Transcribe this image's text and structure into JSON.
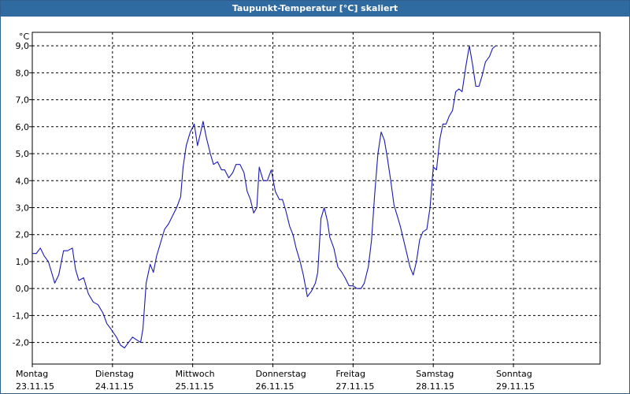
{
  "window": {
    "title": "Taupunkt-Temperatur [°C] skaliert"
  },
  "colors": {
    "line": "#1a1ab0",
    "titlebar": "#2f6aa0",
    "grid": "#000000"
  },
  "chart_data": {
    "type": "line",
    "title": "Taupunkt-Temperatur [°C] skaliert",
    "ylabel": "°C",
    "xlabel": "",
    "ylim": [
      -2.8,
      9.5
    ],
    "xlim": [
      0,
      7.08
    ],
    "grid": true,
    "yticks": [
      {
        "value": 9,
        "label": "9,0"
      },
      {
        "value": 8,
        "label": "8,0"
      },
      {
        "value": 7,
        "label": "7,0"
      },
      {
        "value": 6,
        "label": "6,0"
      },
      {
        "value": 5,
        "label": "5,0"
      },
      {
        "value": 4,
        "label": "4,0"
      },
      {
        "value": 3,
        "label": "3,0"
      },
      {
        "value": 2,
        "label": "2,0"
      },
      {
        "value": 1,
        "label": "1,0"
      },
      {
        "value": 0,
        "label": "0,0"
      },
      {
        "value": -1,
        "label": "-1,0"
      },
      {
        "value": -2,
        "label": "-2,0"
      }
    ],
    "xticks": [
      {
        "value": 0,
        "day": "Montag",
        "date": "23.11.15"
      },
      {
        "value": 1,
        "day": "Dienstag",
        "date": "24.11.15"
      },
      {
        "value": 2,
        "day": "Mittwoch",
        "date": "25.11.15"
      },
      {
        "value": 3,
        "day": "Donnerstag",
        "date": "26.11.15"
      },
      {
        "value": 4,
        "day": "Freitag",
        "date": "27.11.15"
      },
      {
        "value": 5,
        "day": "Samstag",
        "date": "28.11.15"
      },
      {
        "value": 6,
        "day": "Sonntag",
        "date": "29.11.15"
      }
    ],
    "series": [
      {
        "values": [
          [
            0.0,
            1.3
          ],
          [
            0.05,
            1.3
          ],
          [
            0.1,
            1.5
          ],
          [
            0.15,
            1.2
          ],
          [
            0.2,
            1.0
          ],
          [
            0.25,
            0.5
          ],
          [
            0.28,
            0.2
          ],
          [
            0.33,
            0.5
          ],
          [
            0.39,
            1.4
          ],
          [
            0.44,
            1.4
          ],
          [
            0.5,
            1.5
          ],
          [
            0.54,
            0.7
          ],
          [
            0.58,
            0.3
          ],
          [
            0.64,
            0.4
          ],
          [
            0.7,
            -0.2
          ],
          [
            0.76,
            -0.5
          ],
          [
            0.82,
            -0.6
          ],
          [
            0.88,
            -0.9
          ],
          [
            0.93,
            -1.3
          ],
          [
            0.98,
            -1.5
          ],
          [
            1.05,
            -1.8
          ],
          [
            1.1,
            -2.1
          ],
          [
            1.15,
            -2.2
          ],
          [
            1.2,
            -2.0
          ],
          [
            1.25,
            -1.8
          ],
          [
            1.3,
            -1.9
          ],
          [
            1.35,
            -2.0
          ],
          [
            1.38,
            -1.5
          ],
          [
            1.42,
            0.2
          ],
          [
            1.47,
            0.9
          ],
          [
            1.51,
            0.6
          ],
          [
            1.55,
            1.2
          ],
          [
            1.6,
            1.7
          ],
          [
            1.65,
            2.2
          ],
          [
            1.7,
            2.4
          ],
          [
            1.75,
            2.7
          ],
          [
            1.8,
            3.0
          ],
          [
            1.85,
            3.4
          ],
          [
            1.88,
            4.5
          ],
          [
            1.92,
            5.3
          ],
          [
            1.97,
            5.8
          ],
          [
            2.02,
            6.1
          ],
          [
            2.06,
            5.3
          ],
          [
            2.1,
            5.8
          ],
          [
            2.13,
            6.2
          ],
          [
            2.17,
            5.6
          ],
          [
            2.22,
            5.0
          ],
          [
            2.26,
            4.6
          ],
          [
            2.31,
            4.7
          ],
          [
            2.36,
            4.4
          ],
          [
            2.4,
            4.4
          ],
          [
            2.45,
            4.1
          ],
          [
            2.5,
            4.3
          ],
          [
            2.54,
            4.6
          ],
          [
            2.59,
            4.6
          ],
          [
            2.64,
            4.3
          ],
          [
            2.68,
            3.6
          ],
          [
            2.72,
            3.3
          ],
          [
            2.76,
            2.8
          ],
          [
            2.8,
            3.0
          ],
          [
            2.83,
            4.5
          ],
          [
            2.88,
            4.0
          ],
          [
            2.93,
            4.0
          ],
          [
            2.98,
            4.4
          ],
          [
            3.03,
            3.6
          ],
          [
            3.08,
            3.3
          ],
          [
            3.12,
            3.3
          ],
          [
            3.16,
            2.9
          ],
          [
            3.21,
            2.3
          ],
          [
            3.25,
            2.0
          ],
          [
            3.29,
            1.5
          ],
          [
            3.34,
            1.0
          ],
          [
            3.38,
            0.5
          ],
          [
            3.43,
            -0.3
          ],
          [
            3.48,
            -0.1
          ],
          [
            3.53,
            0.2
          ],
          [
            3.56,
            0.6
          ],
          [
            3.6,
            2.6
          ],
          [
            3.64,
            3.0
          ],
          [
            3.68,
            2.5
          ],
          [
            3.71,
            1.9
          ],
          [
            3.76,
            1.5
          ],
          [
            3.81,
            0.8
          ],
          [
            3.86,
            0.6
          ],
          [
            3.9,
            0.4
          ],
          [
            3.95,
            0.1
          ],
          [
            4.0,
            0.1
          ],
          [
            4.05,
            0.0
          ],
          [
            4.1,
            0.0
          ],
          [
            4.14,
            0.2
          ],
          [
            4.19,
            0.8
          ],
          [
            4.23,
            1.8
          ],
          [
            4.27,
            3.5
          ],
          [
            4.31,
            5.0
          ],
          [
            4.35,
            5.8
          ],
          [
            4.39,
            5.5
          ],
          [
            4.43,
            4.8
          ],
          [
            4.47,
            4.0
          ],
          [
            4.51,
            3.1
          ],
          [
            4.55,
            2.7
          ],
          [
            4.59,
            2.3
          ],
          [
            4.63,
            1.8
          ],
          [
            4.67,
            1.3
          ],
          [
            4.71,
            0.8
          ],
          [
            4.75,
            0.5
          ],
          [
            4.79,
            1.0
          ],
          [
            4.83,
            1.8
          ],
          [
            4.87,
            2.1
          ],
          [
            4.92,
            2.2
          ],
          [
            4.96,
            3.0
          ],
          [
            5.0,
            4.5
          ],
          [
            5.04,
            4.4
          ],
          [
            5.08,
            5.5
          ],
          [
            5.12,
            6.1
          ],
          [
            5.16,
            6.1
          ],
          [
            5.2,
            6.4
          ],
          [
            5.24,
            6.6
          ],
          [
            5.28,
            7.3
          ],
          [
            5.32,
            7.4
          ],
          [
            5.36,
            7.3
          ],
          [
            5.41,
            8.3
          ],
          [
            5.45,
            9.0
          ],
          [
            5.49,
            8.3
          ],
          [
            5.53,
            7.5
          ],
          [
            5.57,
            7.5
          ],
          [
            5.61,
            7.9
          ],
          [
            5.65,
            8.4
          ],
          [
            5.7,
            8.6
          ],
          [
            5.74,
            8.9
          ],
          [
            5.78,
            9.0
          ]
        ]
      }
    ]
  }
}
